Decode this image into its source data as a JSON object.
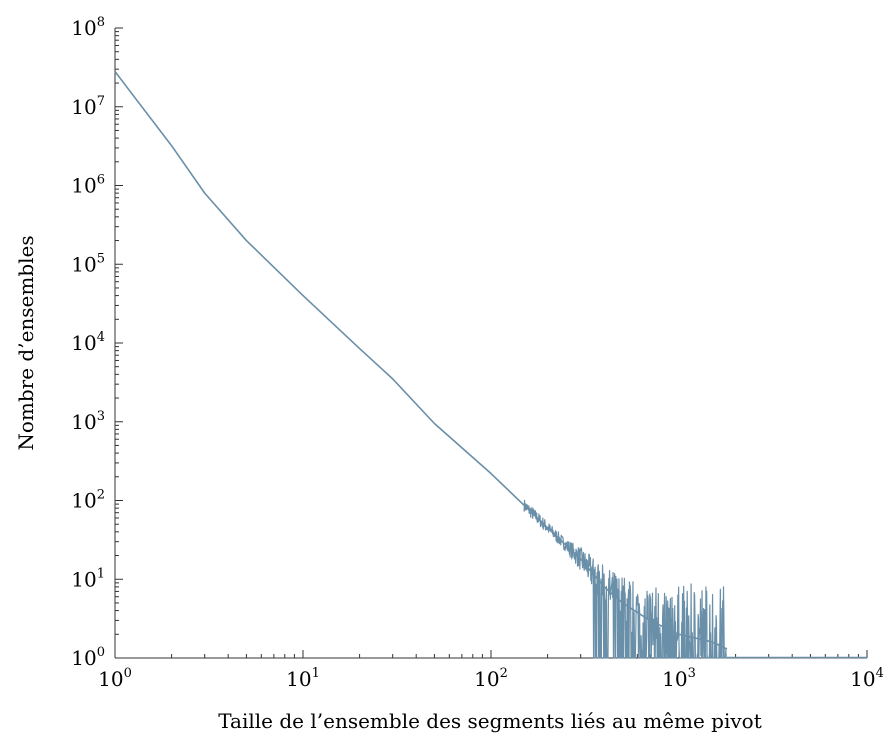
{
  "chart_data": {
    "type": "line",
    "xscale": "log",
    "yscale": "log",
    "xlim": [
      1,
      10000
    ],
    "ylim": [
      1,
      100000000
    ],
    "xlabel": "Taille de l’ensemble des segments liés au même pivot",
    "ylabel": "Nombre d’ensembles",
    "grid": false,
    "color": "#6a8fa8",
    "x_ticks": [
      {
        "value": 1,
        "base": "10",
        "exp": "0"
      },
      {
        "value": 10,
        "base": "10",
        "exp": "1"
      },
      {
        "value": 100,
        "base": "10",
        "exp": "2"
      },
      {
        "value": 1000,
        "base": "10",
        "exp": "3"
      },
      {
        "value": 10000,
        "base": "10",
        "exp": "4"
      }
    ],
    "y_ticks": [
      {
        "value": 1,
        "base": "10",
        "exp": "0"
      },
      {
        "value": 10,
        "base": "10",
        "exp": "1"
      },
      {
        "value": 100,
        "base": "10",
        "exp": "2"
      },
      {
        "value": 1000,
        "base": "10",
        "exp": "3"
      },
      {
        "value": 10000,
        "base": "10",
        "exp": "4"
      },
      {
        "value": 100000,
        "base": "10",
        "exp": "5"
      },
      {
        "value": 1000000,
        "base": "10",
        "exp": "6"
      },
      {
        "value": 10000000,
        "base": "10",
        "exp": "7"
      },
      {
        "value": 100000000,
        "base": "10",
        "exp": "8"
      }
    ],
    "series": [
      {
        "x": [
          1,
          2,
          3,
          5,
          10,
          20,
          30,
          50,
          100,
          200,
          300,
          400,
          500,
          700,
          1000,
          1500,
          1800
        ],
        "y": [
          28000000,
          3200000,
          800000,
          200000,
          40000,
          8500,
          3500,
          950,
          220,
          45,
          18,
          8,
          5,
          3,
          2,
          1.6,
          1.3
        ]
      }
    ]
  }
}
